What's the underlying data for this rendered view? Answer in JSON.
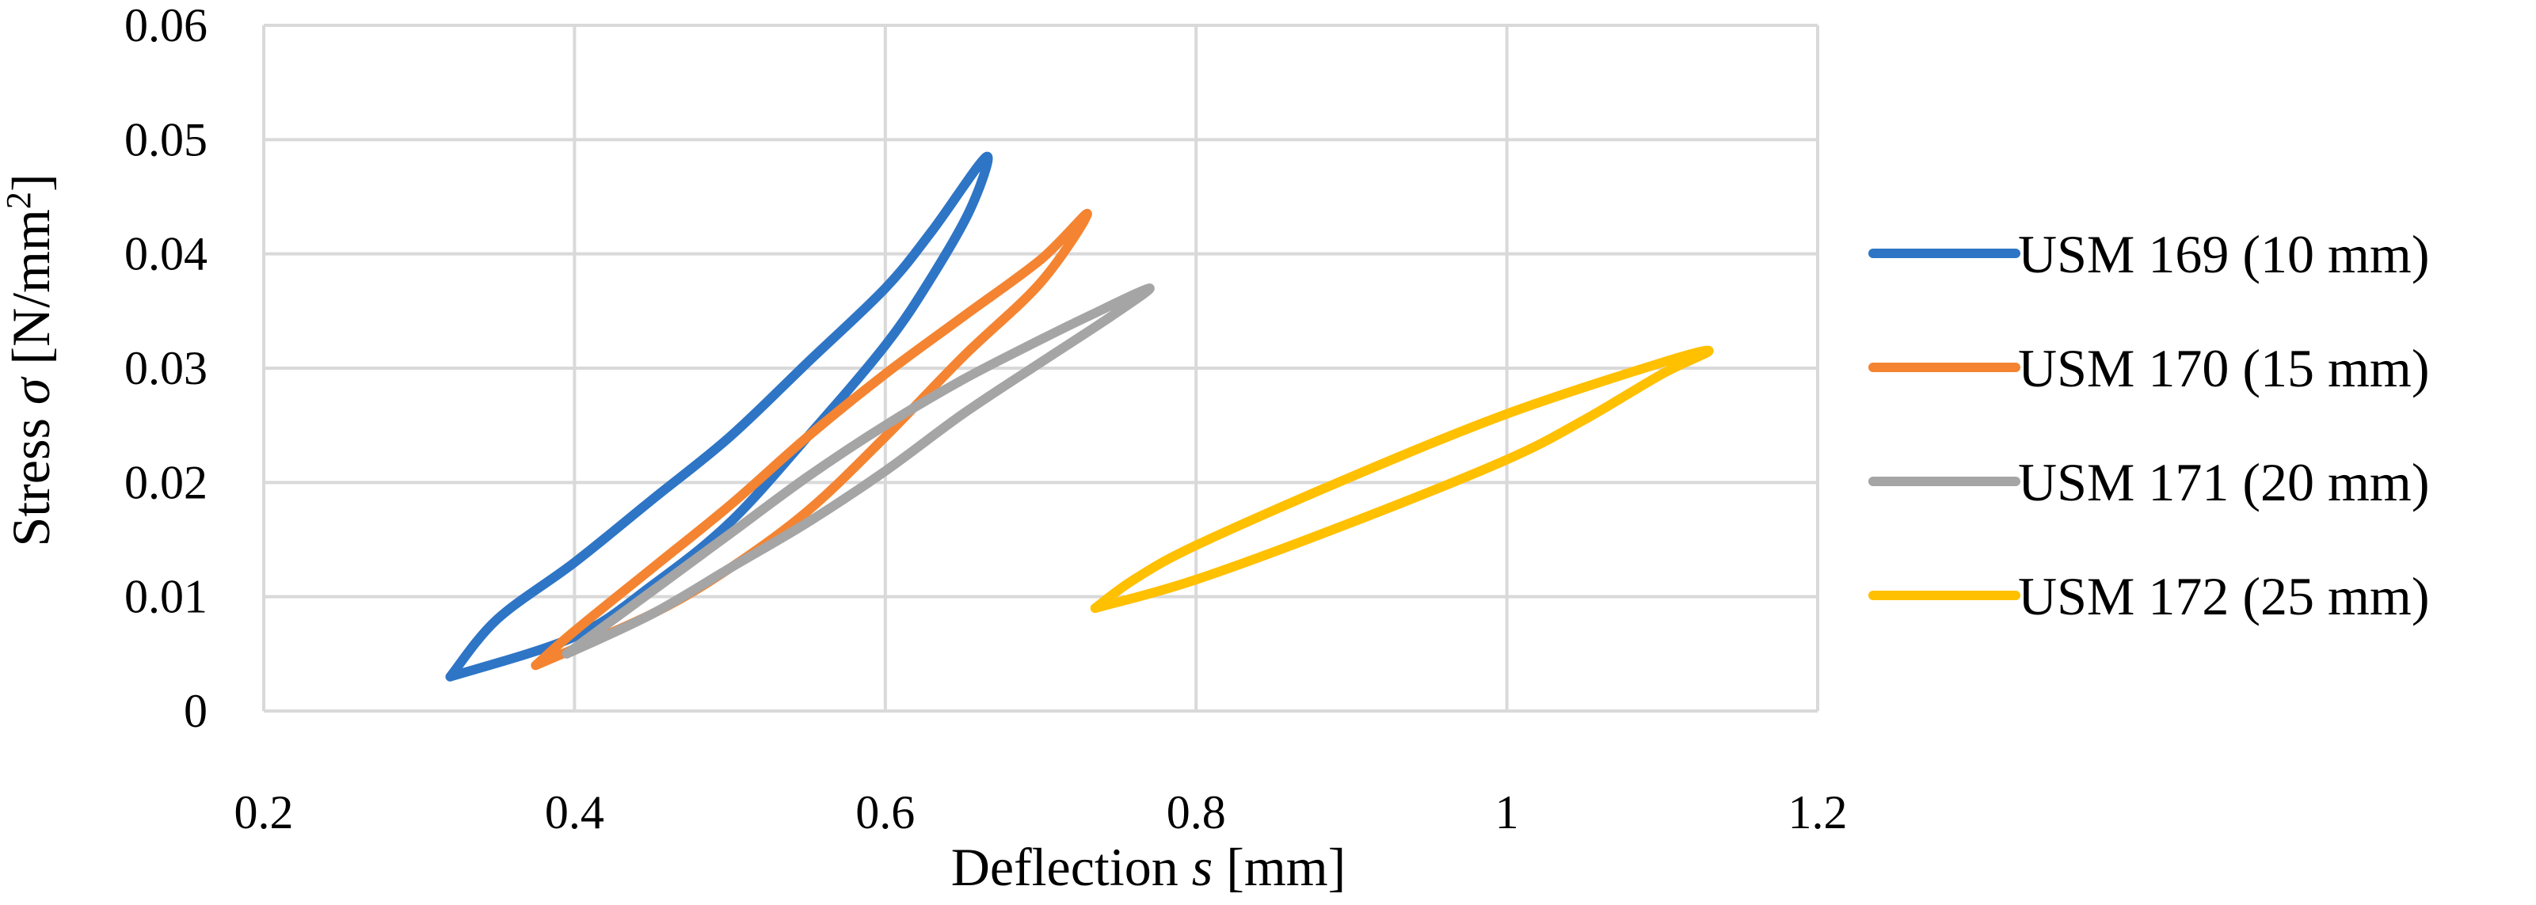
{
  "chart_data": {
    "type": "line",
    "title": "",
    "xlabel": {
      "prefix": "Deflection ",
      "italic": "s",
      "suffix": " [mm]"
    },
    "ylabel": {
      "prefix": "Stress ",
      "italic": "σ",
      "suffix": " [N/mm",
      "sup": "2",
      "end": "]"
    },
    "xlim": [
      0.2,
      1.2
    ],
    "ylim": [
      0,
      0.06
    ],
    "xticks": [
      0.2,
      0.4,
      0.6,
      0.8,
      1.0,
      1.2
    ],
    "xtick_labels": [
      "0.2",
      "0.4",
      "0.6",
      "0.8",
      "1",
      "1.2"
    ],
    "yticks": [
      0,
      0.01,
      0.02,
      0.03,
      0.04,
      0.05,
      0.06
    ],
    "ytick_labels": [
      "0",
      "0.01",
      "0.02",
      "0.03",
      "0.04",
      "0.05",
      "0.06"
    ],
    "grid": true,
    "legend_position": "right",
    "series": [
      {
        "name": "USM 169 (10 mm)",
        "color": "#2E75C6",
        "loading": [
          [
            0.32,
            0.003
          ],
          [
            0.4,
            0.0065
          ],
          [
            0.45,
            0.011
          ],
          [
            0.5,
            0.0165
          ],
          [
            0.55,
            0.024
          ],
          [
            0.6,
            0.032
          ],
          [
            0.63,
            0.038
          ],
          [
            0.655,
            0.044
          ],
          [
            0.665,
            0.0485
          ]
        ],
        "unloading": [
          [
            0.665,
            0.0485
          ],
          [
            0.63,
            0.042
          ],
          [
            0.6,
            0.037
          ],
          [
            0.55,
            0.0305
          ],
          [
            0.5,
            0.024
          ],
          [
            0.45,
            0.0185
          ],
          [
            0.4,
            0.013
          ],
          [
            0.35,
            0.008
          ],
          [
            0.32,
            0.003
          ]
        ]
      },
      {
        "name": "USM 170 (15 mm)",
        "color": "#F48431",
        "loading": [
          [
            0.375,
            0.004
          ],
          [
            0.45,
            0.0085
          ],
          [
            0.5,
            0.0125
          ],
          [
            0.55,
            0.0175
          ],
          [
            0.6,
            0.024
          ],
          [
            0.65,
            0.031
          ],
          [
            0.7,
            0.0375
          ],
          [
            0.73,
            0.0435
          ]
        ],
        "unloading": [
          [
            0.73,
            0.0435
          ],
          [
            0.7,
            0.0395
          ],
          [
            0.65,
            0.0345
          ],
          [
            0.6,
            0.0295
          ],
          [
            0.55,
            0.024
          ],
          [
            0.5,
            0.018
          ],
          [
            0.45,
            0.0125
          ],
          [
            0.4,
            0.007
          ],
          [
            0.375,
            0.004
          ]
        ]
      },
      {
        "name": "USM 171 (20 mm)",
        "color": "#A5A5A5",
        "loading": [
          [
            0.395,
            0.005
          ],
          [
            0.45,
            0.0085
          ],
          [
            0.5,
            0.0125
          ],
          [
            0.55,
            0.0165
          ],
          [
            0.6,
            0.021
          ],
          [
            0.65,
            0.026
          ],
          [
            0.7,
            0.0305
          ],
          [
            0.745,
            0.0345
          ],
          [
            0.77,
            0.037
          ]
        ],
        "unloading": [
          [
            0.77,
            0.037
          ],
          [
            0.73,
            0.0345
          ],
          [
            0.7,
            0.0325
          ],
          [
            0.65,
            0.029
          ],
          [
            0.6,
            0.025
          ],
          [
            0.55,
            0.0205
          ],
          [
            0.5,
            0.0155
          ],
          [
            0.45,
            0.0105
          ],
          [
            0.395,
            0.005
          ]
        ]
      },
      {
        "name": "USM 172 (25 mm)",
        "color": "#FFC000",
        "loading": [
          [
            0.735,
            0.009
          ],
          [
            0.8,
            0.0115
          ],
          [
            0.9,
            0.0165
          ],
          [
            1.0,
            0.022
          ],
          [
            1.05,
            0.0255
          ],
          [
            1.1,
            0.0295
          ],
          [
            1.13,
            0.0315
          ]
        ],
        "unloading": [
          [
            1.13,
            0.0315
          ],
          [
            1.1,
            0.0305
          ],
          [
            1.0,
            0.026
          ],
          [
            0.9,
            0.0205
          ],
          [
            0.8,
            0.0145
          ],
          [
            0.76,
            0.0115
          ],
          [
            0.735,
            0.009
          ]
        ]
      }
    ]
  }
}
